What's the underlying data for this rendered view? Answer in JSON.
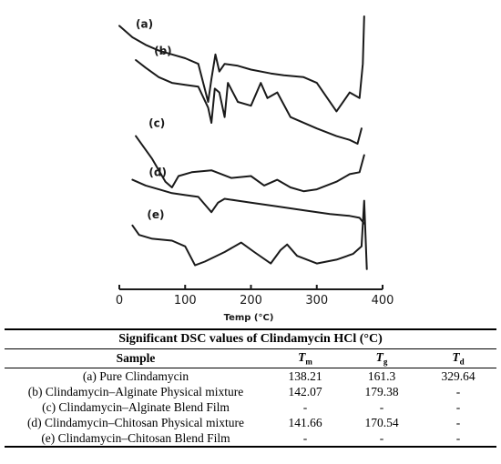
{
  "chart_data": {
    "type": "line",
    "xlabel": "Temp (°C)",
    "xlim": [
      0,
      400
    ],
    "x_ticks": [
      "0",
      "100",
      "200",
      "300",
      "400"
    ],
    "grid": false,
    "series": [
      {
        "name": "(a)",
        "x": [
          0,
          20,
          40,
          60,
          80,
          100,
          120,
          135,
          140,
          146,
          152,
          160,
          180,
          200,
          230,
          250,
          280,
          300,
          330,
          350,
          365,
          370,
          372
        ],
        "y": [
          10,
          9.4,
          9.0,
          8.7,
          8.5,
          8.3,
          8.0,
          6.0,
          7.2,
          8.5,
          7.6,
          8.0,
          7.9,
          7.7,
          7.5,
          7.4,
          7.3,
          7.0,
          5.5,
          6.5,
          6.2,
          8.0,
          10.5
        ]
      },
      {
        "name": "(b)",
        "x": [
          25,
          40,
          60,
          80,
          100,
          120,
          135,
          140,
          145,
          152,
          160,
          165,
          180,
          200,
          215,
          225,
          240,
          260,
          300,
          330,
          350,
          362,
          368
        ],
        "y": [
          8.2,
          7.8,
          7.3,
          7.0,
          6.9,
          6.8,
          5.7,
          4.9,
          6.7,
          6.5,
          5.2,
          7.0,
          6.0,
          5.8,
          7.0,
          6.2,
          6.5,
          5.2,
          4.6,
          4.2,
          4.0,
          3.8,
          4.6
        ]
      },
      {
        "name": "(c)",
        "x": [
          25,
          50,
          70,
          80,
          90,
          110,
          140,
          170,
          200,
          220,
          240,
          260,
          280,
          300,
          330,
          350,
          365,
          372
        ],
        "y": [
          4.2,
          3.0,
          1.8,
          1.5,
          2.1,
          2.3,
          2.4,
          2.0,
          2.1,
          1.6,
          1.9,
          1.5,
          1.3,
          1.4,
          1.8,
          2.2,
          2.3,
          3.2
        ]
      },
      {
        "name": "(d)",
        "x": [
          20,
          40,
          60,
          80,
          100,
          120,
          135,
          140,
          150,
          160,
          180,
          200,
          240,
          280,
          320,
          350,
          365,
          372
        ],
        "y": [
          1.9,
          1.6,
          1.4,
          1.2,
          1.1,
          1.0,
          0.4,
          0.2,
          0.7,
          0.9,
          0.8,
          0.7,
          0.5,
          0.3,
          0.1,
          0.0,
          -0.1,
          -0.4
        ]
      },
      {
        "name": "(e)",
        "x": [
          20,
          30,
          50,
          80,
          100,
          115,
          130,
          160,
          185,
          205,
          230,
          245,
          255,
          270,
          300,
          330,
          355,
          368,
          372,
          376
        ],
        "y": [
          -0.5,
          -1.0,
          -1.2,
          -1.3,
          -1.6,
          -2.6,
          -2.4,
          -1.9,
          -1.4,
          -1.9,
          -2.5,
          -1.8,
          -1.5,
          -2.1,
          -2.5,
          -2.3,
          -2.0,
          -1.6,
          0.8,
          -2.8
        ]
      }
    ]
  },
  "table": {
    "caption": "Significant DSC values of Clindamycin HCl (°C)",
    "headers": {
      "sample": "Sample",
      "tm": "T",
      "tm_sub": "m",
      "tg": "T",
      "tg_sub": "g",
      "td": "T",
      "td_sub": "d"
    },
    "rows": [
      {
        "sample": "(a) Pure Clindamycin",
        "tm": "138.21",
        "tg": "161.3",
        "td": "329.64"
      },
      {
        "sample": "(b) Clindamycin–Alginate Physical mixture",
        "tm": "142.07",
        "tg": "179.38",
        "td": "-"
      },
      {
        "sample": "(c) Clindamycin–Alginate Blend Film",
        "tm": "-",
        "tg": "-",
        "td": "-"
      },
      {
        "sample": "(d) Clindamycin–Chitosan Physical mixture",
        "tm": "141.66",
        "tg": "170.54",
        "td": "-"
      },
      {
        "sample": "(e) Clindamycin–Chitosan Blend Film",
        "tm": "-",
        "tg": "-",
        "td": "-"
      }
    ]
  }
}
